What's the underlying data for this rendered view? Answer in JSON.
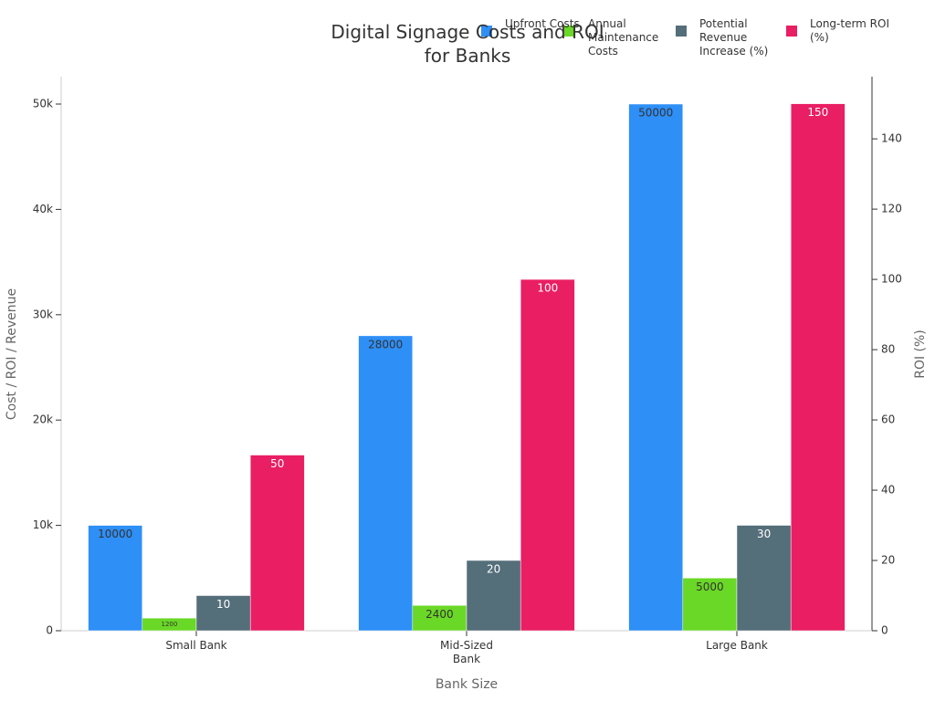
{
  "chart_data": {
    "type": "bar",
    "title": "Digital Signage Costs and ROI for Banks",
    "x_label": "Bank Size",
    "y_label": "Cost / ROI / Revenue",
    "y2_label": "ROI (%)",
    "categories": [
      "Small Bank",
      "Mid-Sized Bank",
      "Large Bank"
    ],
    "series": [
      {
        "name": "Upfront Costs",
        "color": "#2e8ff7",
        "values": [
          10000,
          28000,
          50000
        ],
        "label_color": "#333333"
      },
      {
        "name": "Annual Maintenance Costs",
        "color": "#6ad826",
        "values": [
          1200,
          2400,
          5000
        ],
        "label_color": "#333333"
      },
      {
        "name": "Potential Revenue Increase (%)",
        "color": "#546e7a",
        "values": [
          10,
          20,
          30
        ],
        "axis": "y2",
        "label_color": "#ffffff"
      },
      {
        "name": "Long-term ROI (%)",
        "color": "#e91e63",
        "values": [
          50,
          100,
          150
        ],
        "axis": "y2",
        "label_color": "#ffffff"
      }
    ],
    "ylim": [
      0,
      52600
    ],
    "yticks": [
      0,
      {
        "value": 10000,
        "label": "10k"
      },
      {
        "value": 20000,
        "label": "20k"
      },
      {
        "value": 30000,
        "label": "30k"
      },
      {
        "value": 40000,
        "label": "40k"
      },
      {
        "value": 50000,
        "label": "50k"
      }
    ],
    "y2lim": [
      0,
      157.7
    ],
    "y2ticks": [
      0,
      20,
      40,
      60,
      80,
      100,
      120,
      140
    ],
    "legend": "top-right",
    "grid": false
  }
}
